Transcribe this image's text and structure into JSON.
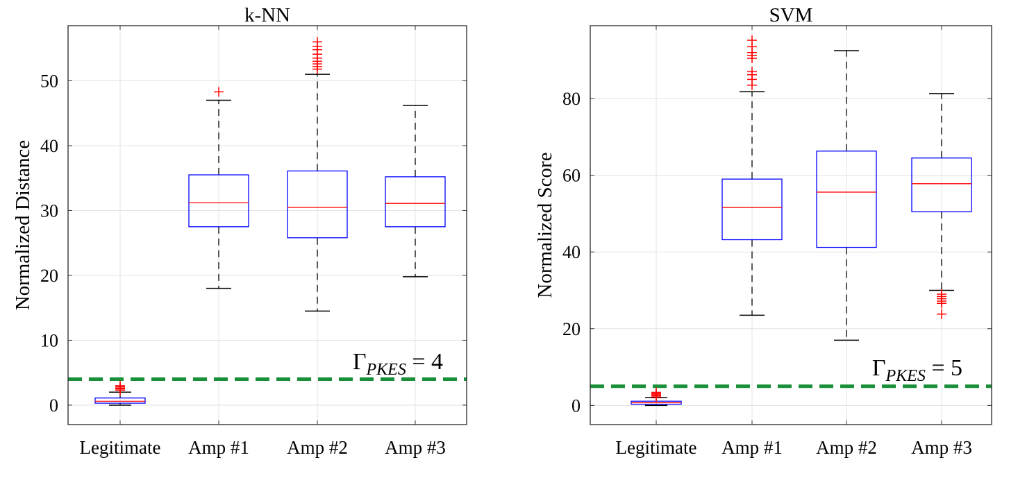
{
  "chart_data": [
    {
      "type": "box",
      "title": "k-NN",
      "xlabel": "",
      "ylabel": "Normalized Distance",
      "ylim": [
        -3,
        58.5
      ],
      "yticks": [
        0,
        10,
        20,
        30,
        40,
        50
      ],
      "grid": true,
      "categories": [
        "Legitimate",
        "Amp #1",
        "Amp #2",
        "Amp #3"
      ],
      "boxes": [
        {
          "whisker_low": 0.0,
          "q1": 0.3,
          "median": 0.6,
          "q3": 1.1,
          "whisker_high": 2.0,
          "outliers": [
            2.3,
            2.5,
            2.6,
            2.8,
            3.0
          ]
        },
        {
          "whisker_low": 18.0,
          "q1": 27.5,
          "median": 31.2,
          "q3": 35.5,
          "whisker_high": 47.0,
          "outliers": [
            48.3
          ]
        },
        {
          "whisker_low": 14.5,
          "q1": 25.8,
          "median": 30.5,
          "q3": 36.1,
          "whisker_high": 51.0,
          "outliers": [
            51.8,
            52.2,
            52.6,
            53.0,
            53.5,
            54.1,
            54.8,
            55.3,
            56.0
          ]
        },
        {
          "whisker_low": 19.8,
          "q1": 27.5,
          "median": 31.1,
          "q3": 35.2,
          "whisker_high": 46.2,
          "outliers": []
        }
      ],
      "threshold": {
        "value": 4,
        "label_prefix": "Γ",
        "label_subscript": "PKES",
        "label_suffix": " = 4",
        "color": "#1a8f3a"
      },
      "colors": {
        "box": "#0000ff",
        "median": "#ff0000",
        "outlier": "#ff0000",
        "whisker": "#000000",
        "grid": "#e3e3e3"
      }
    },
    {
      "type": "box",
      "title": "SVM",
      "xlabel": "",
      "ylabel": "Normalized Score",
      "ylim": [
        -5,
        99
      ],
      "yticks": [
        0,
        20,
        40,
        60,
        80
      ],
      "grid": true,
      "categories": [
        "Legitimate",
        "Amp #1",
        "Amp #2",
        "Amp #3"
      ],
      "boxes": [
        {
          "whisker_low": 0.0,
          "q1": 0.3,
          "median": 0.7,
          "q3": 1.1,
          "whisker_high": 2.0,
          "outliers": [
            2.2,
            2.5,
            2.8,
            3.1,
            3.4
          ]
        },
        {
          "whisker_low": 23.5,
          "q1": 43.2,
          "median": 51.6,
          "q3": 59.0,
          "whisker_high": 81.8,
          "outliers": [
            83.5,
            85.0,
            86.2,
            87.0,
            90.5,
            91.2,
            92.0,
            93.5,
            95.2
          ]
        },
        {
          "whisker_low": 17.0,
          "q1": 41.2,
          "median": 55.6,
          "q3": 66.3,
          "whisker_high": 92.5,
          "outliers": []
        },
        {
          "whisker_low": 30.0,
          "q1": 50.5,
          "median": 57.8,
          "q3": 64.5,
          "whisker_high": 81.3,
          "outliers": [
            29.0,
            28.4,
            27.8,
            27.2,
            26.6,
            23.8
          ]
        }
      ],
      "threshold": {
        "value": 5,
        "label_prefix": "Γ",
        "label_subscript": "PKES",
        "label_suffix": " = 5",
        "color": "#1a8f3a"
      },
      "colors": {
        "box": "#0000ff",
        "median": "#ff0000",
        "outlier": "#ff0000",
        "whisker": "#000000",
        "grid": "#e3e3e3"
      }
    }
  ]
}
